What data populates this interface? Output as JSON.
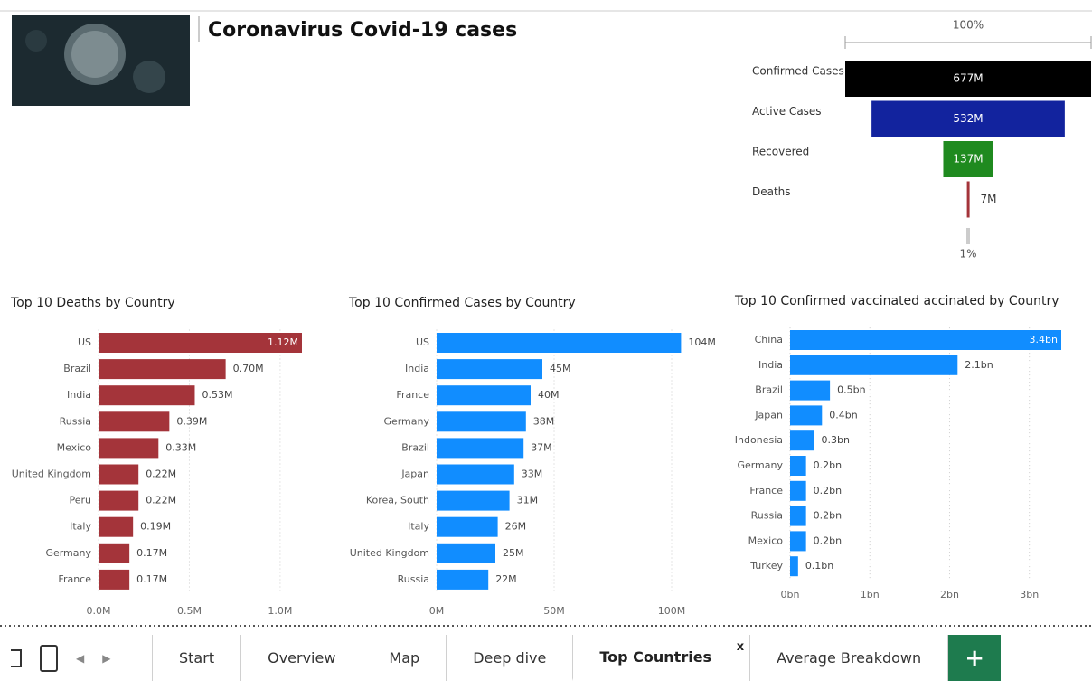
{
  "header": {
    "title": "Coronavirus Covid-19 cases"
  },
  "tabs": {
    "items": [
      "Start",
      "Overview",
      "Map",
      "Deep dive",
      "Top Countries",
      "Average Breakdown"
    ],
    "active": 4,
    "close_label": "x",
    "add_label": "+"
  },
  "chart_data": [
    {
      "type": "funnel",
      "top_label": "100%",
      "bottom_label": "1%",
      "categories": [
        "Confirmed Cases",
        "Active Cases",
        "Recovered",
        "Deaths"
      ],
      "values": [
        677000000,
        532000000,
        137000000,
        7000000
      ],
      "value_labels": [
        "677M",
        "532M",
        "137M",
        "7M"
      ],
      "colors": [
        "#000000",
        "#12239e",
        "#1f8a1f",
        "#a4343a"
      ]
    },
    {
      "type": "hbar",
      "title": "Top 10 Deaths by Country",
      "color": "#a4343a",
      "categories": [
        "US",
        "Brazil",
        "India",
        "Russia",
        "Mexico",
        "United Kingdom",
        "Peru",
        "Italy",
        "Germany",
        "France"
      ],
      "values": [
        1120000,
        700000,
        530000,
        390000,
        330000,
        220000,
        220000,
        190000,
        170000,
        170000
      ],
      "value_labels": [
        "1.12M",
        "0.70M",
        "0.53M",
        "0.39M",
        "0.33M",
        "0.22M",
        "0.22M",
        "0.19M",
        "0.17M",
        "0.17M"
      ],
      "xlim": [
        0,
        1120000
      ],
      "xticks": [
        {
          "value": 0,
          "label": "0.0M"
        },
        {
          "value": 500000,
          "label": "0.5M"
        },
        {
          "value": 1000000,
          "label": "1.0M"
        }
      ],
      "grid": true
    },
    {
      "type": "hbar",
      "title": "Top 10 Confirmed Cases by Country",
      "color": "#118dff",
      "categories": [
        "US",
        "India",
        "France",
        "Germany",
        "Brazil",
        "Japan",
        "Korea, South",
        "Italy",
        "United Kingdom",
        "Russia"
      ],
      "values": [
        104000000,
        45000000,
        40000000,
        38000000,
        37000000,
        33000000,
        31000000,
        26000000,
        25000000,
        22000000
      ],
      "value_labels": [
        "104M",
        "45M",
        "40M",
        "38M",
        "37M",
        "33M",
        "31M",
        "26M",
        "25M",
        "22M"
      ],
      "xlim": [
        0,
        115000000
      ],
      "xticks": [
        {
          "value": 0,
          "label": "0M"
        },
        {
          "value": 50000000,
          "label": "50M"
        },
        {
          "value": 100000000,
          "label": "100M"
        }
      ],
      "grid": true
    },
    {
      "type": "hbar",
      "title": "Top 10 Confirmed vaccinated accinated by Country",
      "color": "#118dff",
      "categories": [
        "China",
        "India",
        "Brazil",
        "Japan",
        "Indonesia",
        "Germany",
        "France",
        "Russia",
        "Mexico",
        "Turkey"
      ],
      "values": [
        3400000000,
        2100000000,
        500000000,
        400000000,
        300000000,
        200000000,
        200000000,
        200000000,
        200000000,
        100000000
      ],
      "value_labels": [
        "3.4bn",
        "2.1bn",
        "0.5bn",
        "0.4bn",
        "0.3bn",
        "0.2bn",
        "0.2bn",
        "0.2bn",
        "0.2bn",
        "0.1bn"
      ],
      "xlim": [
        0,
        3400000000
      ],
      "xticks": [
        {
          "value": 0,
          "label": "0bn"
        },
        {
          "value": 1000000000,
          "label": "1bn"
        },
        {
          "value": 2000000000,
          "label": "2bn"
        },
        {
          "value": 3000000000,
          "label": "3bn"
        }
      ],
      "grid": true
    }
  ]
}
